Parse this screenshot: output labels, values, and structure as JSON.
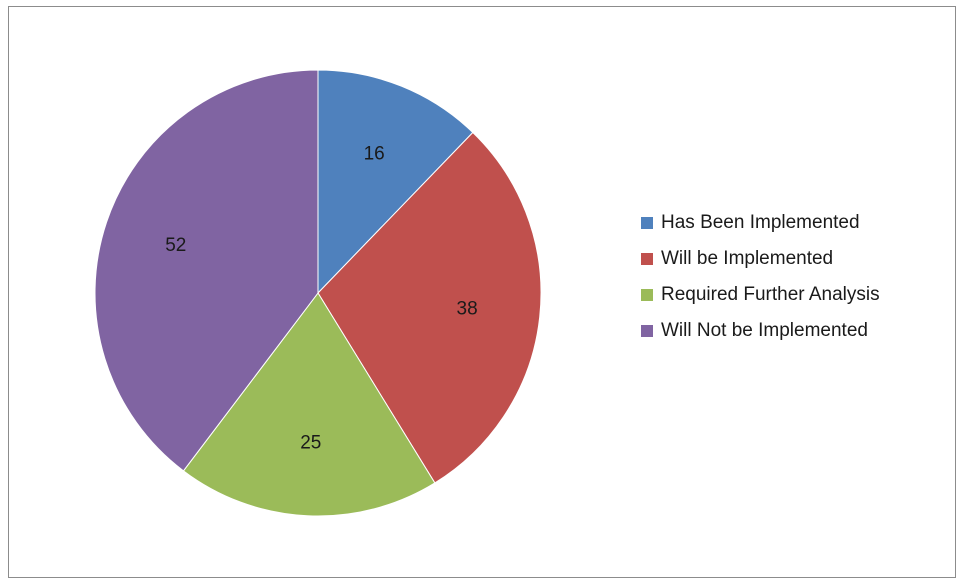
{
  "chart_data": {
    "type": "pie",
    "categories": [
      "Has Been Implemented",
      "Will be Implemented",
      "Required Further Analysis",
      "Will Not be Implemented"
    ],
    "values": [
      16,
      38,
      25,
      52
    ],
    "colors": [
      "#4f81bd",
      "#c0504d",
      "#9bbb59",
      "#8064a2"
    ],
    "data_labels": [
      "16",
      "38",
      "25",
      "52"
    ],
    "start": "12 o'clock, clockwise",
    "legend_position": "right"
  }
}
